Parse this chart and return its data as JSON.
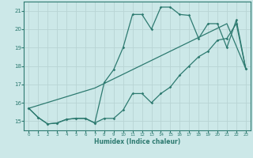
{
  "xlabel": "Humidex (Indice chaleur)",
  "ylabel": "",
  "bg_color": "#cce8e8",
  "grid_color": "#b8d4d4",
  "line_color": "#2d7a70",
  "xlim": [
    -0.5,
    23.5
  ],
  "ylim": [
    14.5,
    21.5
  ],
  "x_ticks": [
    0,
    1,
    2,
    3,
    4,
    5,
    6,
    7,
    8,
    9,
    10,
    11,
    12,
    13,
    14,
    15,
    16,
    17,
    18,
    19,
    20,
    21,
    22,
    23
  ],
  "y_ticks": [
    15,
    16,
    17,
    18,
    19,
    20,
    21
  ],
  "line1_x": [
    0,
    1,
    2,
    3,
    4,
    5,
    6,
    7,
    8,
    9,
    10,
    11,
    12,
    13,
    14,
    15,
    16,
    17,
    18,
    19,
    20,
    21,
    22,
    23
  ],
  "line1_y": [
    15.7,
    15.2,
    14.85,
    14.9,
    15.1,
    15.15,
    15.15,
    14.9,
    15.15,
    15.15,
    15.6,
    16.5,
    16.5,
    16.0,
    16.5,
    16.85,
    17.5,
    18.0,
    18.5,
    18.8,
    19.4,
    19.5,
    20.3,
    17.85
  ],
  "line2_x": [
    0,
    1,
    2,
    3,
    4,
    5,
    6,
    7,
    8,
    9,
    10,
    11,
    12,
    13,
    14,
    15,
    16,
    17,
    18,
    19,
    20,
    21,
    22,
    23
  ],
  "line2_y": [
    15.7,
    15.2,
    14.85,
    14.9,
    15.1,
    15.15,
    15.15,
    14.9,
    17.1,
    17.8,
    19.0,
    20.8,
    20.8,
    20.0,
    21.2,
    21.2,
    20.8,
    20.75,
    19.5,
    20.3,
    20.3,
    19.0,
    20.5,
    17.85
  ],
  "line3_x": [
    0,
    7,
    21,
    23
  ],
  "line3_y": [
    15.7,
    16.8,
    20.3,
    17.85
  ]
}
